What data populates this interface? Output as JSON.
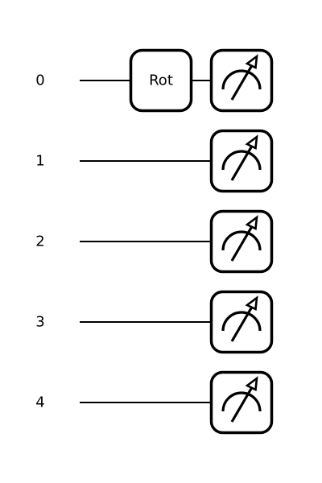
{
  "circuit": {
    "wires": [
      {
        "label": "0"
      },
      {
        "label": "1"
      },
      {
        "label": "2"
      },
      {
        "label": "3"
      },
      {
        "label": "4"
      }
    ],
    "gates": [
      {
        "label": "Rot",
        "wire": 0
      }
    ],
    "measurements": [
      0,
      1,
      2,
      3,
      4
    ]
  }
}
